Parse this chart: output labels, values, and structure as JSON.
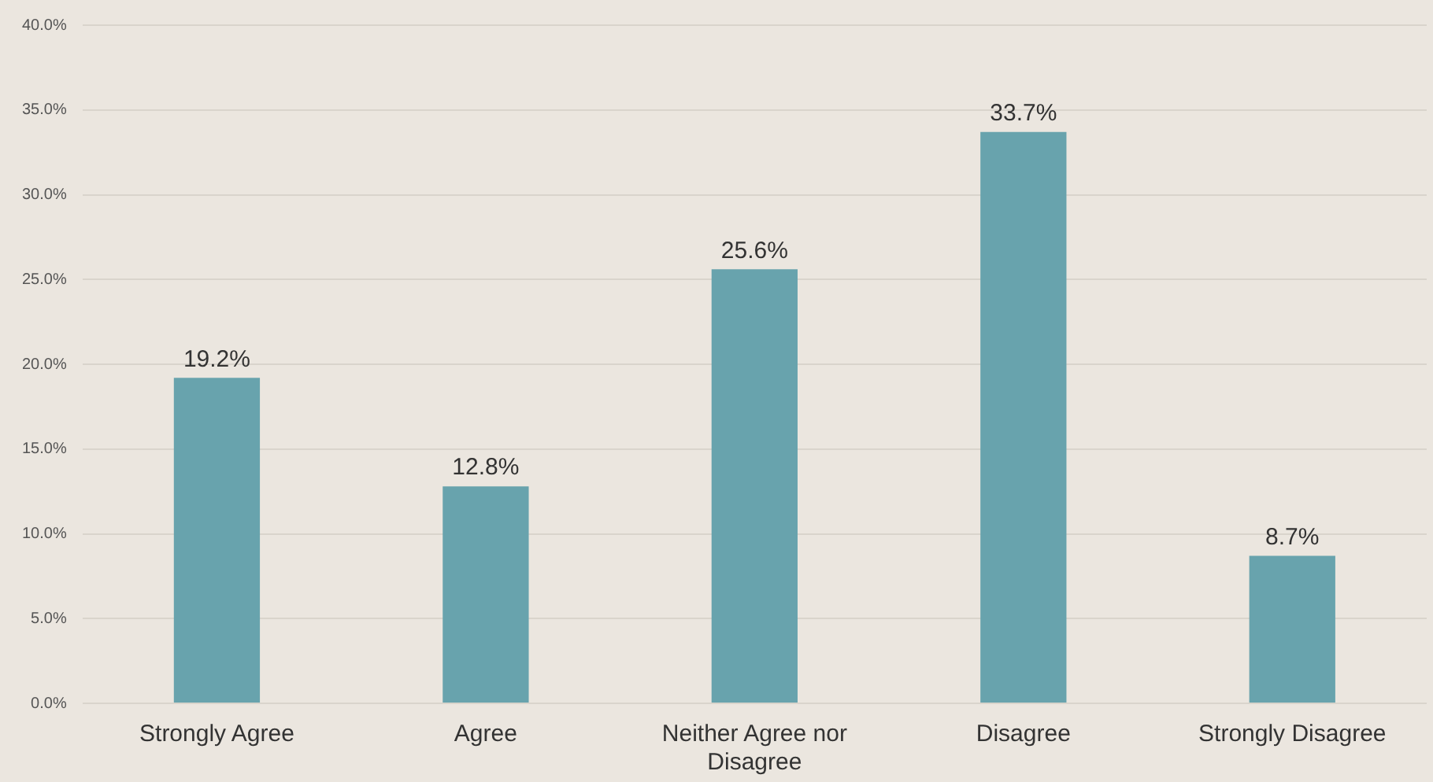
{
  "chart_data": {
    "type": "bar",
    "categories": [
      "Strongly Agree",
      "Agree",
      "Neither Agree nor Disagree",
      "Disagree",
      "Strongly Disagree"
    ],
    "values": [
      19.2,
      12.8,
      25.6,
      33.7,
      8.7
    ],
    "value_labels": [
      "19.2%",
      "12.8%",
      "25.6%",
      "33.7%",
      "8.7%"
    ],
    "color": "#68a3ad",
    "ylim": [
      0,
      40
    ],
    "yticks": [
      {
        "value": 0,
        "label": "0.0%"
      },
      {
        "value": 5,
        "label": "5.0%"
      },
      {
        "value": 10,
        "label": "10.0%"
      },
      {
        "value": 15,
        "label": "15.0%"
      },
      {
        "value": 20,
        "label": "20.0%"
      },
      {
        "value": 25,
        "label": "25.0%"
      },
      {
        "value": 30,
        "label": "30.0%"
      },
      {
        "value": 35,
        "label": "35.0%"
      },
      {
        "value": 40,
        "label": "40.0%"
      }
    ],
    "grid": "y",
    "legend": false
  }
}
